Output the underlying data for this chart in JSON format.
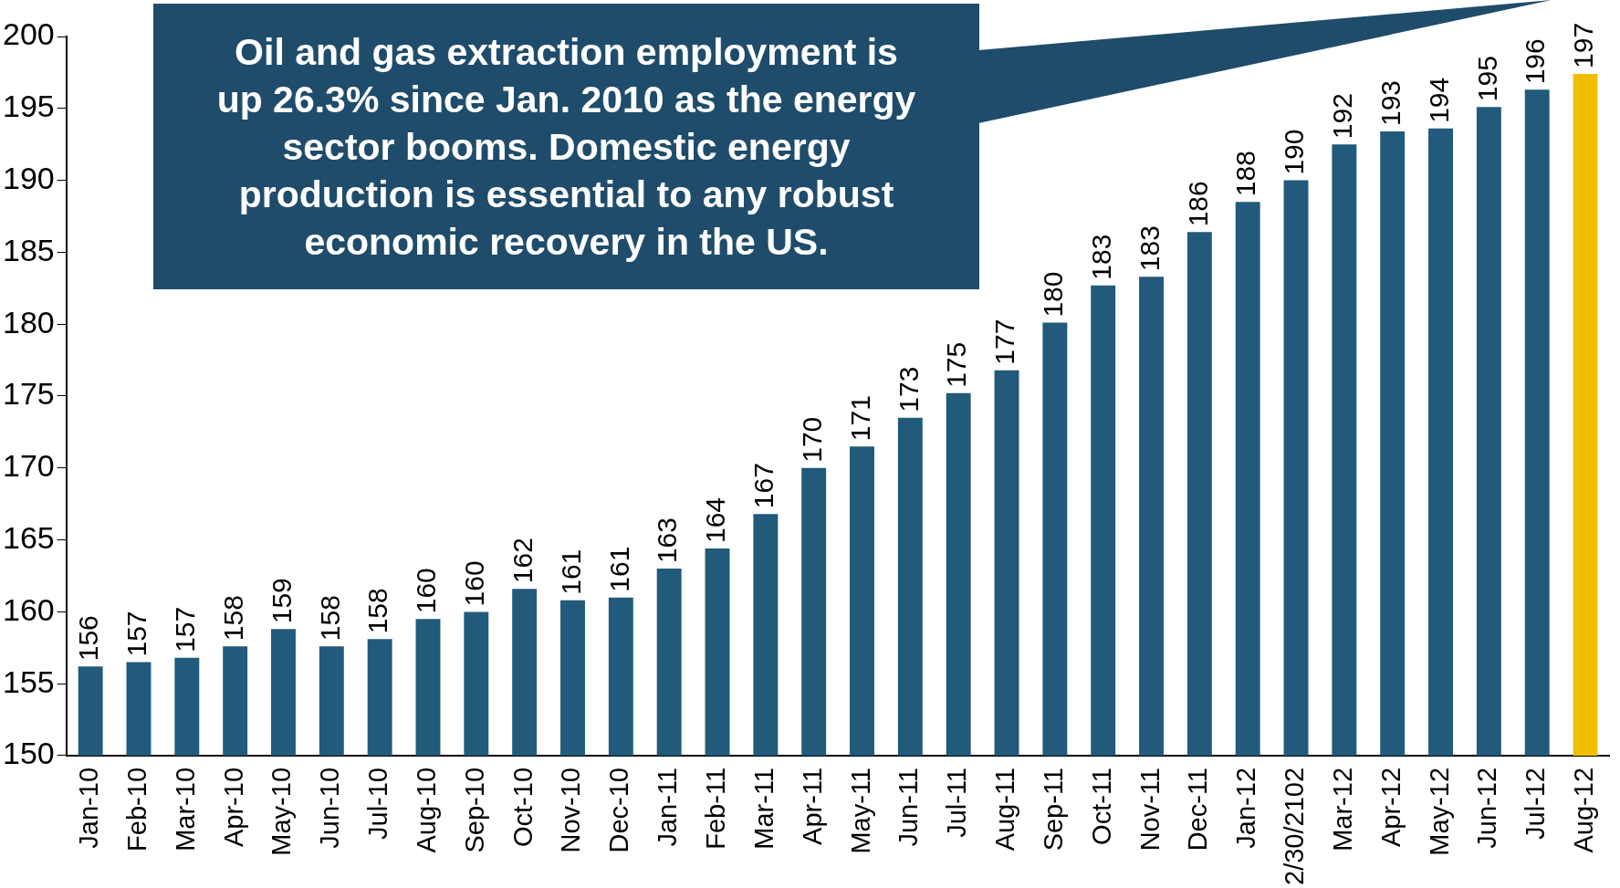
{
  "chart_data": {
    "type": "bar",
    "categories": [
      "Jan-10",
      "Feb-10",
      "Mar-10",
      "Apr-10",
      "May-10",
      "Jun-10",
      "Jul-10",
      "Aug-10",
      "Sep-10",
      "Oct-10",
      "Nov-10",
      "Dec-10",
      "Jan-11",
      "Feb-11",
      "Mar-11",
      "Apr-11",
      "May-11",
      "Jun-11",
      "Jul-11",
      "Aug-11",
      "Sep-11",
      "Oct-11",
      "Nov-11",
      "Dec-11",
      "Jan-12",
      "2/30/2102",
      "Mar-12",
      "Apr-12",
      "May-12",
      "Jun-12",
      "Jul-12",
      "Aug-12"
    ],
    "values": [
      156.2,
      156.5,
      156.8,
      157.6,
      158.8,
      157.6,
      158.1,
      159.5,
      160.0,
      161.6,
      160.8,
      161.0,
      163.0,
      164.4,
      166.8,
      170.0,
      171.5,
      173.5,
      175.2,
      176.8,
      180.1,
      182.7,
      183.3,
      186.4,
      188.5,
      190.0,
      192.5,
      193.4,
      193.6,
      195.1,
      196.3,
      197.4
    ],
    "value_labels": [
      "156",
      "157",
      "157",
      "158",
      "159",
      "158",
      "158",
      "160",
      "160",
      "162",
      "161",
      "161",
      "163",
      "164",
      "167",
      "170",
      "171",
      "173",
      "175",
      "177",
      "180",
      "183",
      "183",
      "186",
      "188",
      "190",
      "192",
      "193",
      "194",
      "195",
      "196",
      "197"
    ],
    "colors": [
      "#215a7b",
      "#215a7b",
      "#215a7b",
      "#215a7b",
      "#215a7b",
      "#215a7b",
      "#215a7b",
      "#215a7b",
      "#215a7b",
      "#215a7b",
      "#215a7b",
      "#215a7b",
      "#215a7b",
      "#215a7b",
      "#215a7b",
      "#215a7b",
      "#215a7b",
      "#215a7b",
      "#215a7b",
      "#215a7b",
      "#215a7b",
      "#215a7b",
      "#215a7b",
      "#215a7b",
      "#215a7b",
      "#215a7b",
      "#215a7b",
      "#215a7b",
      "#215a7b",
      "#215a7b",
      "#215a7b",
      "#f0c000"
    ],
    "ylim": [
      150,
      200
    ],
    "yticks": [
      150,
      155,
      160,
      165,
      170,
      175,
      180,
      185,
      190,
      195,
      200
    ],
    "annotations": [
      "Oil and gas extraction employment is up 26.3% since Jan. 2010 as the energy sector booms.  Domestic energy production is essential to any robust economic recovery in the US."
    ]
  }
}
